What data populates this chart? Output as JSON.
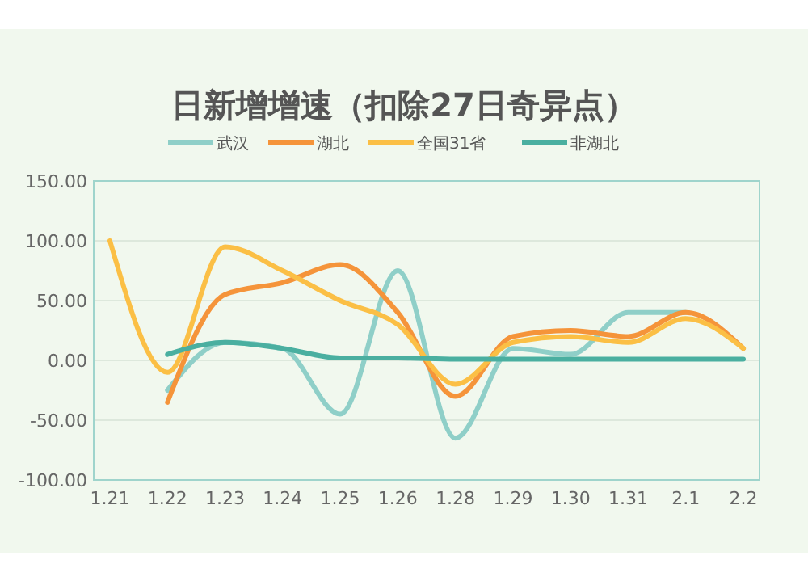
{
  "chart_data": {
    "type": "line",
    "title": "日新增增速（扣除27日奇异点）",
    "categories": [
      "1.21",
      "1.22",
      "1.23",
      "1.24",
      "1.25",
      "1.26",
      "1.28",
      "1.29",
      "1.30",
      "1.31",
      "2.1",
      "2.2"
    ],
    "series": [
      {
        "name": "武汉",
        "color": "#8fcfc8",
        "values": [
          null,
          -25,
          15,
          10,
          -45,
          75,
          -65,
          10,
          5,
          40,
          40,
          null
        ]
      },
      {
        "name": "湖北",
        "color": "#f5943a",
        "values": [
          null,
          -35,
          55,
          65,
          80,
          40,
          -30,
          20,
          25,
          20,
          40,
          10
        ]
      },
      {
        "name": "全国31省",
        "color": "#fbbf45",
        "values": [
          100,
          -10,
          95,
          75,
          50,
          30,
          -20,
          15,
          20,
          15,
          35,
          10
        ]
      },
      {
        "name": "非湖北",
        "color": "#4aafa0",
        "values": [
          null,
          5,
          15,
          10,
          2,
          2,
          1,
          1,
          1,
          1,
          1,
          1
        ]
      }
    ],
    "ylim": [
      -100,
      150
    ],
    "yticks": [
      {
        "value": -100,
        "label": "-100.00"
      },
      {
        "value": -50,
        "label": "-50.00"
      },
      {
        "value": 0,
        "label": "0.00"
      },
      {
        "value": 50,
        "label": "50.00"
      },
      {
        "value": 100,
        "label": "100.00"
      },
      {
        "value": 150,
        "label": "150.00"
      }
    ],
    "grid": "y",
    "legend": "top",
    "marker": "none",
    "line_style": "solid"
  }
}
